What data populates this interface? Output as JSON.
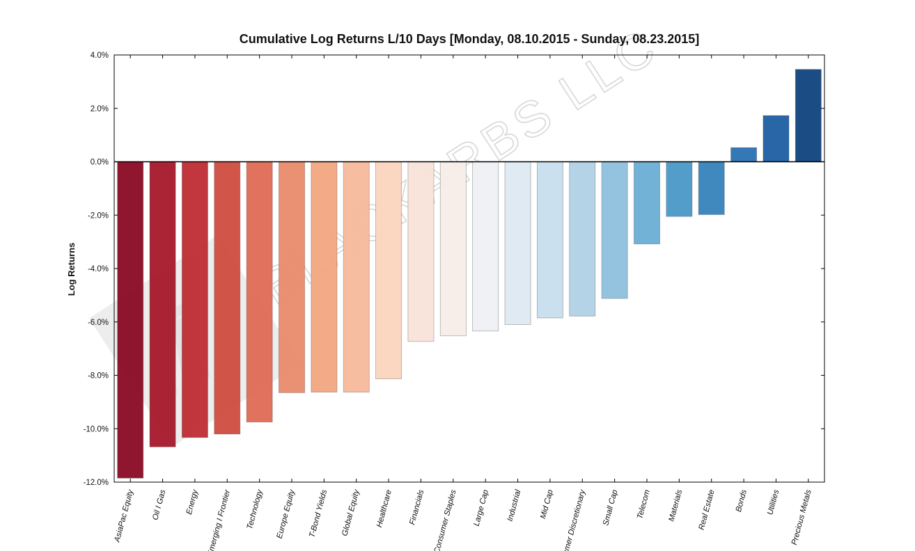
{
  "watermark_text": "BLACKARBS LLC",
  "chart_data": {
    "type": "bar",
    "title": "Cumulative Log Returns L/10 Days  [Monday, 08.10.2015 - Sunday, 08.23.2015]",
    "xlabel": "",
    "ylabel": "Log Returns",
    "ylim": [
      -12.0,
      4.0
    ],
    "yticks": [
      "4.0%",
      "2.0%",
      "0.0%",
      "-2.0%",
      "-4.0%",
      "-6.0%",
      "-8.0%",
      "-10.0%",
      "-12.0%"
    ],
    "ytick_values": [
      4,
      2,
      0,
      -2,
      -4,
      -6,
      -8,
      -10,
      -12
    ],
    "grid": false,
    "categories": [
      "AsiaPac Equity",
      "Oil I Gas",
      "Energy",
      "Emerging I Frontier",
      "Technology",
      "Europe Equity",
      "T-Bond Yields",
      "Global Equity",
      "Healthcare",
      "Financials",
      "Consumer Staples",
      "Large Cap",
      "Industrial",
      "Mid Cap",
      "Consumer Discretionary",
      "Small Cap",
      "Telecom",
      "Materials",
      "Real Estate",
      "Bonds",
      "Utilities",
      "Precious Metals"
    ],
    "values": [
      -11.85,
      -10.68,
      -10.33,
      -10.2,
      -9.75,
      -8.65,
      -8.63,
      -8.63,
      -8.13,
      -6.73,
      -6.52,
      -6.34,
      -6.1,
      -5.85,
      -5.78,
      -5.12,
      -3.08,
      -2.05,
      -1.98,
      0.53,
      1.73,
      3.46
    ],
    "colors": [
      "#8a0a24",
      "#a5182b",
      "#bf2b33",
      "#d04c40",
      "#de6a55",
      "#e98a6b",
      "#f2a580",
      "#f7b99c",
      "#fbd5bf",
      "#f9e3d9",
      "#f7ede9",
      "#eef0f3",
      "#dde9f1",
      "#c7deed",
      "#b0d1e6",
      "#8ec0dd",
      "#6aaed4",
      "#4a98c8",
      "#3583bc",
      "#2a71b2",
      "#1c5ea2",
      "#0f437d"
    ]
  }
}
